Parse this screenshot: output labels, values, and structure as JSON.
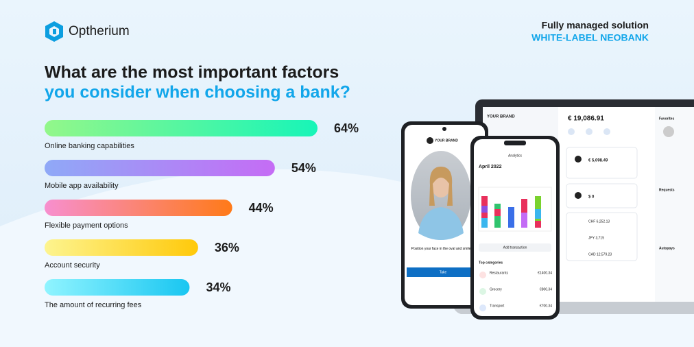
{
  "header": {
    "brand": "Optherium",
    "tagline": "Fully managed solution",
    "product": "WHITE-LABEL NEOBANK"
  },
  "chart_data": {
    "type": "hbar",
    "title": [
      "What are the most important factors",
      "you consider when choosing a bank?"
    ],
    "categories": [
      "Online banking capabilities",
      "Mobile app availability",
      "Flexible payment options",
      "Account security",
      "The amount of recurring fees"
    ],
    "values": [
      64,
      54,
      44,
      36,
      34
    ],
    "value_labels": [
      "64%",
      "54%",
      "44%",
      "36%",
      "34%"
    ],
    "colors": [
      [
        "#93f78a",
        "#17f5b8"
      ],
      [
        "#8fa9f7",
        "#c56cf5"
      ],
      [
        "#f78fcf",
        "#ff7a18"
      ],
      [
        "#fdf48f",
        "#ffc90a"
      ],
      [
        "#90f4ff",
        "#19c6f1"
      ]
    ]
  },
  "mockup": {
    "brand": "YOUR BRAND",
    "face_prompt": "Position your face in the oval and smile",
    "take": "Take",
    "screen_title": "Analytics",
    "month": "April 2022",
    "add": "Add transaction",
    "top": "Top categories",
    "rows": [
      {
        "name": "Restaurants",
        "amount": "€1400.34"
      },
      {
        "name": "Grocery",
        "amount": "€800.34"
      },
      {
        "name": "Transport",
        "amount": "€700.34"
      }
    ],
    "balance": "€ 19,086.91",
    "card1": "€ 5,098.49",
    "card2": "$ 0",
    "acc1": "CHF 6,252.13",
    "acc2": "JPY 3,715",
    "acc3": "CAD 12,579.23",
    "favorites": "Favorites",
    "requests": "Requests",
    "autopays": "Autopays"
  }
}
